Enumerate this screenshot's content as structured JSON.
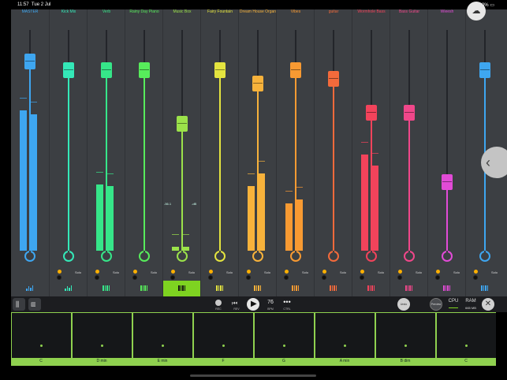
{
  "status_bar": {
    "time": "11:57",
    "date": "Tue 2 Jul",
    "battery": "100%"
  },
  "channels": [
    {
      "name": "MASTER",
      "color": "#3ea6f0",
      "fader_level": 0.86,
      "meter_left": 0.74,
      "meter_right": 0.72,
      "type_icon": "meter-icon"
    },
    {
      "name": "Kick Mix",
      "color": "#34e8b8",
      "fader_level": 0.82,
      "meter_left": 0.0,
      "meter_right": 0.0,
      "type_icon": "meter-icon"
    },
    {
      "name": "Verb",
      "color": "#36e689",
      "fader_level": 0.82,
      "meter_left": 0.35,
      "meter_right": 0.34,
      "type_icon": "piano-icon"
    },
    {
      "name": "Rainy Day Piano",
      "color": "#57ec5b",
      "fader_level": 0.82,
      "meter_left": 0.0,
      "meter_right": 0.0,
      "type_icon": "piano-icon"
    },
    {
      "name": "Music Box",
      "color": "#9be24a",
      "fader_level": 0.58,
      "meter_left": 0.02,
      "meter_right": 0.02,
      "type_icon": "piano-icon"
    },
    {
      "name": "Fairy Fountain",
      "color": "#e4e43f",
      "fader_level": 0.82,
      "meter_left": 0.0,
      "meter_right": 0.0,
      "type_icon": "piano-icon"
    },
    {
      "name": "Dream House Organ",
      "color": "#f7b23b",
      "fader_level": 0.76,
      "meter_left": 0.34,
      "meter_right": 0.41,
      "type_icon": "piano-icon"
    },
    {
      "name": "Vibes",
      "color": "#f89a32",
      "fader_level": 0.82,
      "meter_left": 0.25,
      "meter_right": 0.27,
      "type_icon": "piano-icon"
    },
    {
      "name": "guitar",
      "color": "#f36a3b",
      "fader_level": 0.78,
      "meter_left": 0.0,
      "meter_right": 0.0,
      "type_icon": "piano-icon"
    },
    {
      "name": "Wormhole Bass",
      "color": "#f2435b",
      "fader_level": 0.63,
      "meter_left": 0.51,
      "meter_right": 0.45,
      "type_icon": "piano-icon"
    },
    {
      "name": "Bass Guitar",
      "color": "#f0478a",
      "fader_level": 0.63,
      "meter_left": 0.0,
      "meter_right": 0.0,
      "type_icon": "piano-icon"
    },
    {
      "name": "Wieesh",
      "color": "#e24bd7",
      "fader_level": 0.32,
      "meter_left": 0.0,
      "meter_right": 0.0,
      "type_icon": "piano-icon"
    },
    {
      "name": "",
      "color": "#3ea6f0",
      "fader_level": 0.82,
      "meter_left": 0.0,
      "meter_right": 0.0,
      "type_icon": "piano-icon"
    }
  ],
  "solo_label": "Solo",
  "music_box_meter_labels": {
    "left": "-56.1",
    "right": "-dB"
  },
  "toolbar": {
    "rec_label": "REC",
    "rev_label": "REV",
    "bpm_value": "76",
    "bpm_label": "BPM",
    "ctrl_label": "CTRL",
    "undo_label": "Undo",
    "preview_label": "Preview",
    "cpu_label": "CPU",
    "ram_label": "RAM",
    "ram_value": "665 MB"
  },
  "chord_pads": [
    "C",
    "D min",
    "E min",
    "F",
    "G",
    "A min",
    "B dim",
    "C"
  ]
}
